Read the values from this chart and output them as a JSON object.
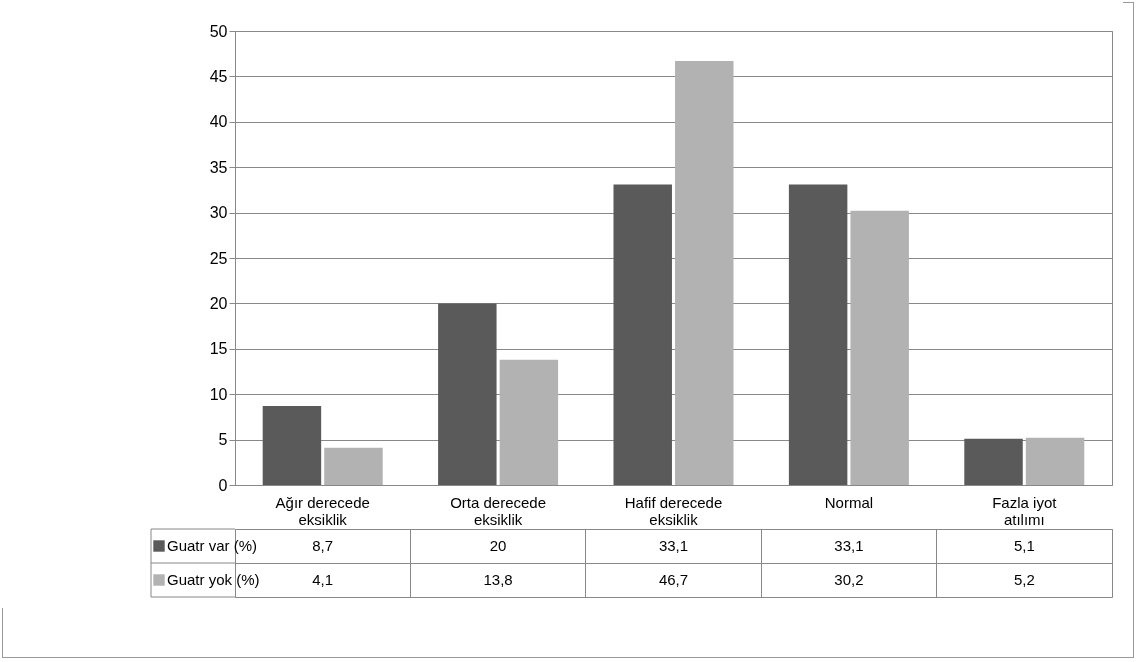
{
  "chart_data": {
    "type": "bar",
    "categories": [
      "Ağır derecede eksiklik",
      "Orta derecede eksiklik",
      "Hafif derecede eksiklik",
      "Normal",
      "Fazla iyot atılımı"
    ],
    "series": [
      {
        "name": "Guatr var (%)",
        "color": "#5a5a5a",
        "values": [
          8.7,
          20,
          33.1,
          33.1,
          5.1
        ],
        "value_labels": [
          "8,7",
          "20",
          "33,1",
          "33,1",
          "5,1"
        ]
      },
      {
        "name": "Guatr yok (%)",
        "color": "#b2b2b2",
        "values": [
          4.1,
          13.8,
          46.7,
          30.2,
          5.2
        ],
        "value_labels": [
          "4,1",
          "13,8",
          "46,7",
          "30,2",
          "5,2"
        ]
      }
    ],
    "ylim": [
      0,
      50
    ],
    "yticks": [
      0,
      5,
      10,
      15,
      20,
      25,
      30,
      35,
      40,
      45,
      50
    ],
    "grid": "y",
    "legend": "bottom"
  }
}
